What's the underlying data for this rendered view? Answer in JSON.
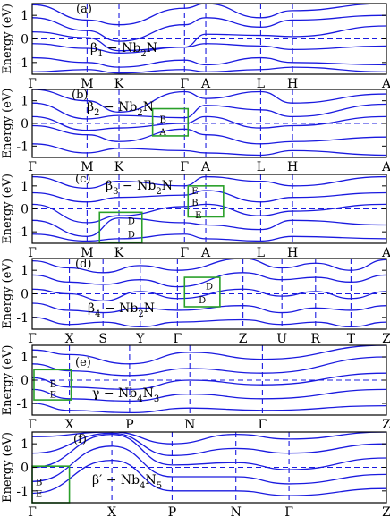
{
  "chart_data": [
    {
      "type": "line",
      "panel_label": "(a)",
      "material": {
        "pre": "β",
        "sub1": "1",
        "mid": " − Nb",
        "sub2": "2",
        "post": "N"
      },
      "ylabel": "Energy (eV)",
      "ylim": [
        -1.5,
        1.5
      ],
      "yticks": [
        -1,
        0,
        1
      ],
      "kpoints": [
        {
          "label": "Γ",
          "x": 0.0
        },
        {
          "label": "M",
          "x": 0.155
        },
        {
          "label": "K",
          "x": 0.245
        },
        {
          "label": "Γ",
          "x": 0.43
        },
        {
          "label": "A",
          "x": 0.49
        },
        {
          "label": "L",
          "x": 0.645
        },
        {
          "label": "H",
          "x": 0.735
        },
        {
          "label": "A",
          "x": 1.0
        }
      ],
      "fermi_level": 0,
      "boxes": [],
      "series": [
        {
          "x": [
            0,
            0.155,
            0.245,
            0.43,
            0.49,
            0.645,
            0.735,
            1.0
          ],
          "values": [
            1.45,
            0.8,
            0.6,
            1.3,
            1.5,
            0.9,
            1.2,
            1.5
          ]
        },
        {
          "x": [
            0,
            0.155,
            0.245,
            0.43,
            0.49,
            0.645,
            0.735,
            1.0
          ],
          "values": [
            0.9,
            0.35,
            -0.1,
            0.6,
            0.9,
            0.5,
            0.8,
            1.0
          ]
        },
        {
          "x": [
            0,
            0.155,
            0.245,
            0.43,
            0.49,
            0.645,
            0.735,
            1.0
          ],
          "values": [
            0.3,
            0.05,
            -0.5,
            -0.35,
            0.2,
            0.15,
            0.1,
            0.55
          ]
        },
        {
          "x": [
            0,
            0.155,
            0.245,
            0.43,
            0.49,
            0.645,
            0.735,
            1.0
          ],
          "values": [
            -0.2,
            -0.4,
            -0.6,
            -0.35,
            -0.2,
            -0.3,
            -0.45,
            -0.3
          ]
        },
        {
          "x": [
            0,
            0.155,
            0.245,
            0.43,
            0.49,
            0.645,
            0.735,
            1.0
          ],
          "values": [
            -0.8,
            -1.0,
            -1.2,
            -0.9,
            -1.1,
            -0.8,
            -1.0,
            -1.1
          ]
        },
        {
          "x": [
            0,
            0.155,
            0.245,
            0.43,
            0.49,
            0.645,
            0.735,
            1.0
          ],
          "values": [
            -1.4,
            -1.3,
            -1.45,
            -1.3,
            -1.4,
            -1.3,
            -1.2,
            -1.4
          ]
        }
      ]
    },
    {
      "type": "line",
      "panel_label": "(b)",
      "material": {
        "pre": "β",
        "sub1": "2",
        "mid": " − Nb",
        "sub2": "2",
        "post": "N"
      },
      "ylabel": "Energy (eV)",
      "ylim": [
        -1.5,
        1.5
      ],
      "yticks": [
        -1,
        0,
        1
      ],
      "kpoints": [
        {
          "label": "Γ",
          "x": 0.0
        },
        {
          "label": "M",
          "x": 0.155
        },
        {
          "label": "K",
          "x": 0.245
        },
        {
          "label": "Γ",
          "x": 0.43
        },
        {
          "label": "A",
          "x": 0.49
        },
        {
          "label": "L",
          "x": 0.645
        },
        {
          "label": "H",
          "x": 0.735
        },
        {
          "label": "A",
          "x": 1.0
        }
      ],
      "fermi_level": 0,
      "boxes": [
        {
          "x0": 0.34,
          "x1": 0.44,
          "y0": -0.55,
          "y1": 0.65,
          "labels": [
            {
              "t": "B",
              "x": 0.36,
              "y": 0.2
            },
            {
              "t": "A",
              "x": 0.36,
              "y": -0.35
            }
          ]
        }
      ],
      "series": [
        {
          "x": [
            0,
            0.155,
            0.245,
            0.43,
            0.49,
            0.645,
            0.735,
            1.0
          ],
          "values": [
            1.5,
            1.0,
            0.5,
            1.4,
            1.1,
            1.4,
            0.9,
            1.3
          ]
        },
        {
          "x": [
            0,
            0.155,
            0.245,
            0.43,
            0.49,
            0.645,
            0.735,
            1.0
          ],
          "values": [
            0.9,
            0.2,
            0.35,
            0.25,
            0.8,
            0.6,
            0.3,
            0.85
          ]
        },
        {
          "x": [
            0,
            0.155,
            0.245,
            0.43,
            0.49,
            0.645,
            0.735,
            1.0
          ],
          "values": [
            0.3,
            -0.3,
            -0.2,
            0.0,
            0.3,
            -0.2,
            -0.1,
            0.3
          ]
        },
        {
          "x": [
            0,
            0.155,
            0.245,
            0.43,
            0.49,
            0.645,
            0.735,
            1.0
          ],
          "values": [
            -0.1,
            -0.5,
            -0.8,
            -0.25,
            -0.5,
            -0.9,
            -0.8,
            -0.6
          ]
        },
        {
          "x": [
            0,
            0.155,
            0.245,
            0.43,
            0.49,
            0.645,
            0.735,
            1.0
          ],
          "values": [
            -0.9,
            -1.3,
            -1.1,
            -1.2,
            -1.3,
            -1.4,
            -1.2,
            -1.4
          ]
        }
      ]
    },
    {
      "type": "line",
      "panel_label": "(c)",
      "material": {
        "pre": "β",
        "sub1": "3",
        "mid": " − Nb",
        "sub2": "2",
        "post": "N"
      },
      "ylabel": "Energy (eV)",
      "ylim": [
        -1.5,
        1.5
      ],
      "yticks": [
        -1,
        0,
        1
      ],
      "kpoints": [
        {
          "label": "Γ",
          "x": 0.0
        },
        {
          "label": "M",
          "x": 0.155
        },
        {
          "label": "K",
          "x": 0.245
        },
        {
          "label": "Γ",
          "x": 0.43
        },
        {
          "label": "A",
          "x": 0.49
        },
        {
          "label": "L",
          "x": 0.645
        },
        {
          "label": "H",
          "x": 0.735
        },
        {
          "label": "A",
          "x": 1.0
        }
      ],
      "fermi_level": 0,
      "boxes": [
        {
          "x0": 0.19,
          "x1": 0.31,
          "y0": -1.45,
          "y1": -0.15,
          "labels": [
            {
              "t": "D",
              "x": 0.27,
              "y": -0.5
            },
            {
              "t": "D",
              "x": 0.27,
              "y": -1.1
            }
          ]
        },
        {
          "x0": 0.44,
          "x1": 0.54,
          "y0": -0.35,
          "y1": 1.0,
          "labels": [
            {
              "t": "E",
              "x": 0.45,
              "y": 0.8
            },
            {
              "t": "B",
              "x": 0.45,
              "y": 0.3
            },
            {
              "t": "E",
              "x": 0.46,
              "y": -0.25
            }
          ]
        }
      ],
      "series": [
        {
          "x": [
            0,
            0.155,
            0.245,
            0.43,
            0.49,
            0.645,
            0.735,
            1.0
          ],
          "values": [
            1.4,
            0.9,
            1.2,
            1.0,
            1.4,
            1.2,
            1.0,
            1.4
          ]
        },
        {
          "x": [
            0,
            0.155,
            0.245,
            0.43,
            0.49,
            0.645,
            0.735,
            1.0
          ],
          "values": [
            0.7,
            0.3,
            0.5,
            0.6,
            0.8,
            0.3,
            0.5,
            0.7
          ]
        },
        {
          "x": [
            0,
            0.155,
            0.245,
            0.43,
            0.49,
            0.645,
            0.735,
            1.0
          ],
          "values": [
            0.2,
            -0.6,
            -0.3,
            0.1,
            0.2,
            -0.3,
            -0.1,
            0.2
          ]
        },
        {
          "x": [
            0,
            0.155,
            0.245,
            0.43,
            0.49,
            0.645,
            0.735,
            1.0
          ],
          "values": [
            -0.5,
            -1.2,
            -0.4,
            -0.6,
            -0.7,
            -0.9,
            -0.5,
            -0.7
          ]
        },
        {
          "x": [
            0,
            0.155,
            0.245,
            0.43,
            0.49,
            0.645,
            0.735,
            1.0
          ],
          "values": [
            -1.1,
            -1.4,
            -1.3,
            -1.1,
            -1.3,
            -1.4,
            -1.2,
            -1.3
          ]
        }
      ]
    },
    {
      "type": "line",
      "panel_label": "(d)",
      "material": {
        "pre": "β",
        "sub1": "4",
        "mid": " − Nb",
        "sub2": "2",
        "post": "N"
      },
      "ylabel": "Energy (eV)",
      "ylim": [
        -1.5,
        1.5
      ],
      "yticks": [
        -1,
        0,
        1
      ],
      "kpoints": [
        {
          "label": "Γ",
          "x": 0.0
        },
        {
          "label": "X",
          "x": 0.105
        },
        {
          "label": "S",
          "x": 0.2
        },
        {
          "label": "Y",
          "x": 0.305
        },
        {
          "label": "Γ",
          "x": 0.41
        },
        {
          "label": "Z",
          "x": 0.595
        },
        {
          "label": "U",
          "x": 0.705
        },
        {
          "label": "R",
          "x": 0.8
        },
        {
          "label": "T",
          "x": 0.9
        },
        {
          "label": "Z",
          "x": 1.0
        }
      ],
      "fermi_level": 0,
      "boxes": [
        {
          "x0": 0.43,
          "x1": 0.53,
          "y0": -0.55,
          "y1": 0.7,
          "labels": [
            {
              "t": "D",
              "x": 0.49,
              "y": 0.35
            },
            {
              "t": "D",
              "x": 0.47,
              "y": -0.25
            }
          ]
        }
      ],
      "series": [
        {
          "x": [
            0,
            0.105,
            0.2,
            0.305,
            0.41,
            0.595,
            0.705,
            0.8,
            0.9,
            1.0
          ],
          "values": [
            1.4,
            1.1,
            0.9,
            1.2,
            1.0,
            1.5,
            1.1,
            1.3,
            1.0,
            1.45
          ]
        },
        {
          "x": [
            0,
            0.105,
            0.2,
            0.305,
            0.41,
            0.595,
            0.705,
            0.8,
            0.9,
            1.0
          ],
          "values": [
            0.8,
            0.5,
            0.4,
            0.6,
            0.3,
            0.9,
            0.6,
            0.7,
            0.5,
            0.8
          ]
        },
        {
          "x": [
            0,
            0.105,
            0.2,
            0.305,
            0.41,
            0.595,
            0.705,
            0.8,
            0.9,
            1.0
          ],
          "values": [
            0.2,
            0.0,
            -0.3,
            0.1,
            -0.2,
            0.2,
            -0.1,
            0.1,
            -0.2,
            0.1
          ]
        },
        {
          "x": [
            0,
            0.105,
            0.2,
            0.305,
            0.41,
            0.595,
            0.705,
            0.8,
            0.9,
            1.0
          ],
          "values": [
            -0.4,
            -0.7,
            -0.8,
            -0.6,
            -0.7,
            -0.5,
            -0.8,
            -0.6,
            -0.7,
            -0.5
          ]
        },
        {
          "x": [
            0,
            0.105,
            0.2,
            0.305,
            0.41,
            0.595,
            0.705,
            0.8,
            0.9,
            1.0
          ],
          "values": [
            -1.0,
            -1.3,
            -1.2,
            -1.4,
            -1.2,
            -1.1,
            -1.3,
            -1.2,
            -1.4,
            -1.2
          ]
        }
      ]
    },
    {
      "type": "line",
      "panel_label": "(e)",
      "material": {
        "pre": "γ",
        "sub1": "",
        "mid": " − Nb",
        "sub2": "4",
        "post": "N",
        "sub3": "3"
      },
      "ylabel": "Energy (eV)",
      "ylim": [
        -1.5,
        1.5
      ],
      "yticks": [
        -1,
        0,
        1
      ],
      "kpoints": [
        {
          "label": "Γ",
          "x": 0.0
        },
        {
          "label": "X",
          "x": 0.105
        },
        {
          "label": "P",
          "x": 0.275
        },
        {
          "label": "N",
          "x": 0.445
        },
        {
          "label": "Γ",
          "x": 0.65
        },
        {
          "label": "Z",
          "x": 1.0
        }
      ],
      "fermi_level": 0,
      "boxes": [
        {
          "x0": 0.005,
          "x1": 0.11,
          "y0": -0.85,
          "y1": 0.45,
          "labels": [
            {
              "t": "B",
              "x": 0.05,
              "y": -0.15
            },
            {
              "t": "E",
              "x": 0.05,
              "y": -0.6
            }
          ]
        }
      ],
      "series": [
        {
          "x": [
            0,
            0.105,
            0.275,
            0.445,
            0.65,
            1.0
          ],
          "values": [
            1.3,
            1.1,
            0.7,
            1.2,
            0.9,
            1.5
          ]
        },
        {
          "x": [
            0,
            0.105,
            0.275,
            0.445,
            0.65,
            1.0
          ],
          "values": [
            0.7,
            0.4,
            0.2,
            0.5,
            0.3,
            1.0
          ]
        },
        {
          "x": [
            0,
            0.105,
            0.275,
            0.445,
            0.65,
            1.0
          ],
          "values": [
            0.1,
            -0.3,
            -0.4,
            0.0,
            -0.2,
            0.3
          ]
        },
        {
          "x": [
            0,
            0.105,
            0.275,
            0.445,
            0.65,
            1.0
          ],
          "values": [
            -0.4,
            -0.8,
            -0.9,
            -0.6,
            -0.8,
            -0.4
          ]
        },
        {
          "x": [
            0,
            0.105,
            0.275,
            0.445,
            0.65,
            1.0
          ],
          "values": [
            -1.0,
            -1.3,
            -1.4,
            -1.2,
            -1.3,
            -1.1
          ]
        }
      ]
    },
    {
      "type": "line",
      "panel_label": "(f)",
      "material": {
        "pre": "β′",
        "sub1": "",
        "mid": " − Nb",
        "sub2": "4",
        "post": "N",
        "sub3": "5"
      },
      "ylabel": "Energy (eV)",
      "ylim": [
        -1.5,
        1.5
      ],
      "yticks": [
        -1,
        0,
        1
      ],
      "kpoints": [
        {
          "label": "Γ",
          "x": 0.0
        },
        {
          "label": "X",
          "x": 0.225
        },
        {
          "label": "P",
          "x": 0.395
        },
        {
          "label": "N",
          "x": 0.575
        },
        {
          "label": "Γ",
          "x": 0.725
        },
        {
          "label": "Z",
          "x": 1.0
        }
      ],
      "fermi_level": 0,
      "boxes": [
        {
          "x0": 0.0,
          "x1": 0.105,
          "y0": -1.5,
          "y1": 0.05,
          "labels": [
            {
              "t": "B",
              "x": 0.01,
              "y": -0.6
            },
            {
              "t": "E",
              "x": 0.01,
              "y": -1.1
            }
          ]
        }
      ],
      "series": [
        {
          "x": [
            0,
            0.225,
            0.395,
            0.575,
            0.725,
            1.0
          ],
          "values": [
            1.3,
            1.5,
            1.0,
            1.4,
            1.2,
            1.5
          ]
        },
        {
          "x": [
            0,
            0.225,
            0.395,
            0.575,
            0.725,
            1.0
          ],
          "values": [
            0.6,
            1.45,
            0.5,
            0.8,
            0.6,
            1.0
          ]
        },
        {
          "x": [
            0,
            0.225,
            0.395,
            0.575,
            0.725,
            1.0
          ],
          "values": [
            0.0,
            1.4,
            0.1,
            0.2,
            -0.1,
            0.4
          ]
        },
        {
          "x": [
            0,
            0.225,
            0.395,
            0.575,
            0.725,
            1.0
          ],
          "values": [
            -0.6,
            0.9,
            -0.4,
            -0.4,
            -0.7,
            -0.3
          ]
        },
        {
          "x": [
            0,
            0.225,
            0.395,
            0.575,
            0.725,
            1.0
          ],
          "values": [
            -1.1,
            0.3,
            -1.0,
            -1.0,
            -1.2,
            -0.9
          ]
        }
      ]
    }
  ]
}
